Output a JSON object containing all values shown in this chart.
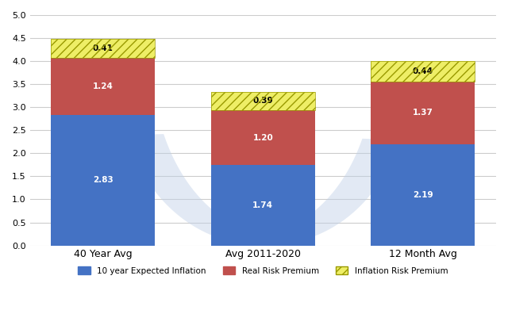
{
  "categories": [
    "40 Year Avg",
    "Avg 2011-2020",
    "12 Month Avg"
  ],
  "inflation": [
    2.83,
    1.74,
    2.19
  ],
  "real_risk": [
    1.24,
    1.2,
    1.37
  ],
  "inflation_risk": [
    0.41,
    0.39,
    0.44
  ],
  "bar_color_inflation": "#4472C4",
  "bar_color_real": "#C0504D",
  "ylim": [
    0,
    5.0
  ],
  "yticks": [
    0.0,
    0.5,
    1.0,
    1.5,
    2.0,
    2.5,
    3.0,
    3.5,
    4.0,
    4.5,
    5.0
  ],
  "legend_labels": [
    "10 year Expected Inflation",
    "Real Risk Premium",
    "Inflation Risk Premium"
  ],
  "background_color": "#FFFFFF",
  "bar_width": 0.65
}
